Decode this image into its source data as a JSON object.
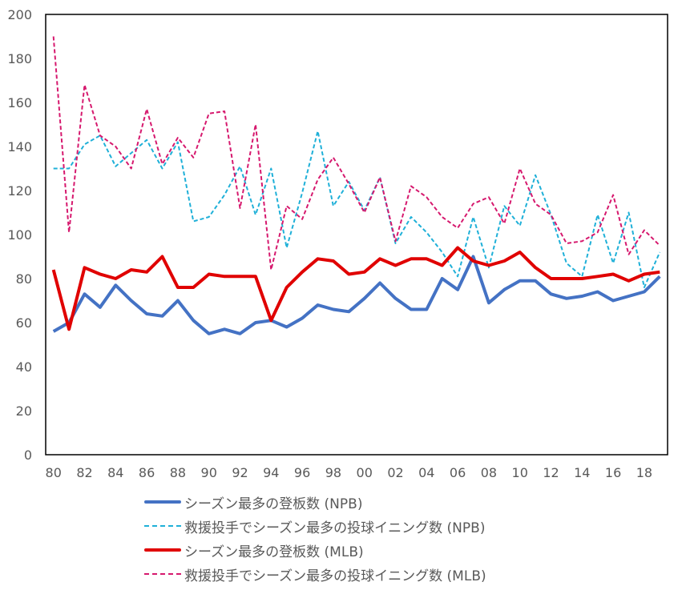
{
  "chart_data": {
    "type": "line",
    "title": "",
    "xlabel": "",
    "ylabel": "",
    "ylim": [
      0,
      200
    ],
    "yticks": [
      0,
      20,
      40,
      60,
      80,
      100,
      120,
      140,
      160,
      180,
      200
    ],
    "grid": false,
    "legend_position": "bottom",
    "x": [
      1980,
      1981,
      1982,
      1983,
      1984,
      1985,
      1986,
      1987,
      1988,
      1989,
      1990,
      1991,
      1992,
      1993,
      1994,
      1995,
      1996,
      1997,
      1998,
      1999,
      2000,
      2001,
      2002,
      2003,
      2004,
      2005,
      2006,
      2007,
      2008,
      2009,
      2010,
      2011,
      2012,
      2013,
      2014,
      2015,
      2016,
      2017,
      2018,
      2019
    ],
    "xtick_labels": [
      "80",
      "82",
      "84",
      "86",
      "88",
      "90",
      "92",
      "94",
      "96",
      "98",
      "00",
      "02",
      "04",
      "06",
      "08",
      "10",
      "12",
      "14",
      "16",
      "18"
    ],
    "series": [
      {
        "name": "シーズン最多の登板数（NPB）",
        "color": "#4472C4",
        "style": "solid",
        "width": 4,
        "values": [
          56,
          60,
          73,
          67,
          77,
          70,
          64,
          63,
          70,
          61,
          55,
          57,
          55,
          60,
          61,
          58,
          62,
          68,
          66,
          65,
          71,
          78,
          71,
          66,
          66,
          80,
          75,
          90,
          69,
          75,
          79,
          79,
          73,
          71,
          72,
          74,
          70,
          72,
          74,
          81
        ]
      },
      {
        "name": "救援投手でシーズン最多の投球イニング数（NPB）",
        "color": "#1FB0D8",
        "style": "dashed",
        "width": 2,
        "values": [
          130,
          130,
          141,
          145,
          131,
          137,
          143,
          130,
          142,
          106,
          108,
          118,
          131,
          109,
          130,
          94,
          119,
          147,
          113,
          124,
          111,
          126,
          96,
          108,
          101,
          92,
          81,
          108,
          85,
          113,
          104,
          127,
          109,
          87,
          81,
          109,
          87,
          110,
          76,
          92
        ]
      },
      {
        "name": "シーズン最多の登板数（MLB）",
        "color": "#E00000",
        "style": "solid",
        "width": 4,
        "values": [
          84,
          57,
          85,
          82,
          80,
          84,
          83,
          90,
          76,
          76,
          82,
          81,
          81,
          81,
          61,
          76,
          83,
          89,
          88,
          82,
          83,
          89,
          86,
          89,
          89,
          86,
          94,
          88,
          86,
          88,
          92,
          85,
          80,
          80,
          80,
          81,
          82,
          79,
          82,
          83
        ]
      },
      {
        "name": "救援投手でシーズン最多の投球イニング数（MLB）",
        "color": "#D6196E",
        "style": "dashed",
        "width": 2,
        "values": [
          190,
          101,
          168,
          145,
          140,
          130,
          157,
          132,
          144,
          135,
          155,
          156,
          112,
          150,
          84,
          113,
          107,
          125,
          135,
          123,
          110,
          126,
          97,
          122,
          117,
          108,
          103,
          114,
          117,
          105,
          130,
          114,
          109,
          96,
          97,
          101,
          118,
          91,
          102,
          95
        ]
      }
    ]
  },
  "legend": {
    "items": [
      {
        "label": "シーズン最多の登板数 (NPB)",
        "color": "#4472C4",
        "style": "solid"
      },
      {
        "label": "救援投手でシーズン最多の投球イニング数 (NPB)",
        "color": "#1FB0D8",
        "style": "dashed"
      },
      {
        "label": "シーズン最多の登板数 (MLB)",
        "color": "#E00000",
        "style": "solid"
      },
      {
        "label": "救援投手でシーズン最多の投球イニング数 (MLB)",
        "color": "#D6196E",
        "style": "dashed"
      }
    ]
  }
}
